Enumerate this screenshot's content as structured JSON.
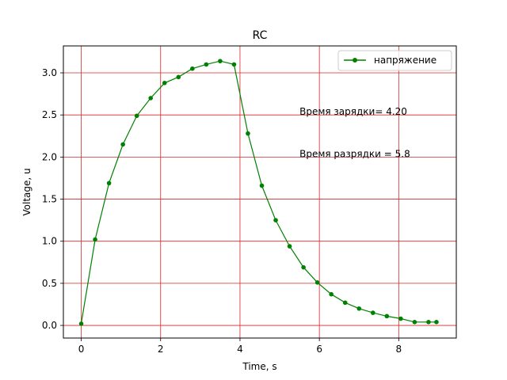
{
  "chart_data": {
    "type": "line",
    "title": "RC",
    "xlabel": "Time, s",
    "ylabel": "Voltage, u",
    "xlim": [
      -0.45,
      9.45
    ],
    "ylim": [
      -0.15,
      3.32
    ],
    "xticks": [
      0,
      2,
      4,
      6,
      8
    ],
    "xtick_labels": [
      "0",
      "2",
      "4",
      "6",
      "8"
    ],
    "yticks": [
      0.0,
      0.5,
      1.0,
      1.5,
      2.0,
      2.5,
      3.0
    ],
    "ytick_labels": [
      "0.0",
      "0.5",
      "1.0",
      "1.5",
      "2.0",
      "2.5",
      "3.0"
    ],
    "grid": true,
    "grid_color": "#d62728",
    "legend": {
      "position": "top-right"
    },
    "series": [
      {
        "name": "напряжение",
        "color": "#008000",
        "marker": "circle",
        "x": [
          0.0,
          0.35,
          0.7,
          1.05,
          1.4,
          1.75,
          2.1,
          2.45,
          2.8,
          3.15,
          3.5,
          3.85,
          4.2,
          4.55,
          4.9,
          5.25,
          5.6,
          5.95,
          6.3,
          6.65,
          7.0,
          7.35,
          7.7,
          8.05,
          8.4,
          8.75,
          8.95
        ],
        "y": [
          0.02,
          1.02,
          1.69,
          2.15,
          2.49,
          2.7,
          2.88,
          2.95,
          3.05,
          3.1,
          3.14,
          3.1,
          2.28,
          1.66,
          1.25,
          0.94,
          0.69,
          0.51,
          0.37,
          0.27,
          0.2,
          0.15,
          0.11,
          0.08,
          0.04,
          0.04,
          0.04
        ]
      }
    ],
    "annotations": [
      {
        "text": "Время зарядки= 4.20",
        "x": 5.5,
        "y": 2.5
      },
      {
        "text": "Время разрядки = 5.8",
        "x": 5.5,
        "y": 2.0
      }
    ]
  }
}
